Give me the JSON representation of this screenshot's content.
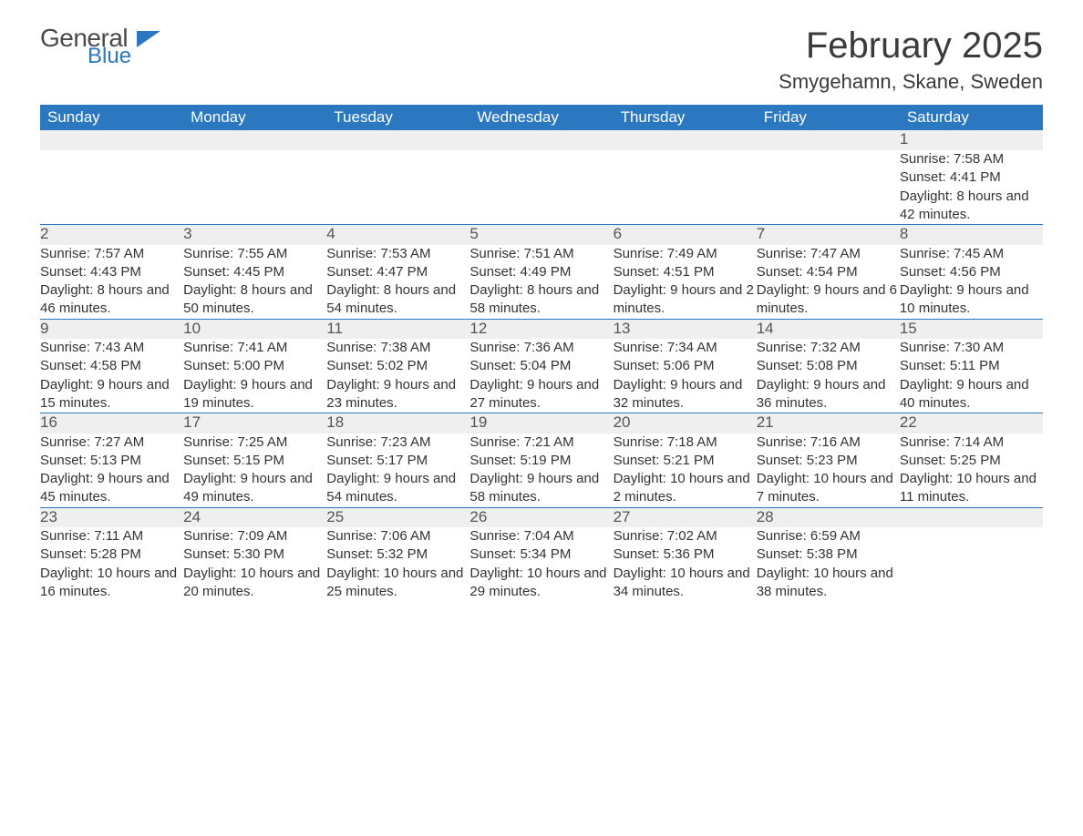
{
  "brand": {
    "general": "General",
    "blue": "Blue"
  },
  "title": "February 2025",
  "location": "Smygehamn, Skane, Sweden",
  "colors": {
    "header_bg": "#2b77c0",
    "header_fg": "#ffffff",
    "daynum_bg": "#efefef",
    "text": "#333333",
    "rule": "#2b77c0"
  },
  "typography": {
    "title_fontsize": 40,
    "location_fontsize": 22,
    "header_fontsize": 17,
    "daynum_fontsize": 17,
    "body_fontsize": 15
  },
  "layout": {
    "columns": 7,
    "rows": 5
  },
  "day_headers": [
    "Sunday",
    "Monday",
    "Tuesday",
    "Wednesday",
    "Thursday",
    "Friday",
    "Saturday"
  ],
  "weeks": [
    [
      null,
      null,
      null,
      null,
      null,
      null,
      {
        "n": "1",
        "sunrise": "7:58 AM",
        "sunset": "4:41 PM",
        "daylight": "8 hours and 42 minutes."
      }
    ],
    [
      {
        "n": "2",
        "sunrise": "7:57 AM",
        "sunset": "4:43 PM",
        "daylight": "8 hours and 46 minutes."
      },
      {
        "n": "3",
        "sunrise": "7:55 AM",
        "sunset": "4:45 PM",
        "daylight": "8 hours and 50 minutes."
      },
      {
        "n": "4",
        "sunrise": "7:53 AM",
        "sunset": "4:47 PM",
        "daylight": "8 hours and 54 minutes."
      },
      {
        "n": "5",
        "sunrise": "7:51 AM",
        "sunset": "4:49 PM",
        "daylight": "8 hours and 58 minutes."
      },
      {
        "n": "6",
        "sunrise": "7:49 AM",
        "sunset": "4:51 PM",
        "daylight": "9 hours and 2 minutes."
      },
      {
        "n": "7",
        "sunrise": "7:47 AM",
        "sunset": "4:54 PM",
        "daylight": "9 hours and 6 minutes."
      },
      {
        "n": "8",
        "sunrise": "7:45 AM",
        "sunset": "4:56 PM",
        "daylight": "9 hours and 10 minutes."
      }
    ],
    [
      {
        "n": "9",
        "sunrise": "7:43 AM",
        "sunset": "4:58 PM",
        "daylight": "9 hours and 15 minutes."
      },
      {
        "n": "10",
        "sunrise": "7:41 AM",
        "sunset": "5:00 PM",
        "daylight": "9 hours and 19 minutes."
      },
      {
        "n": "11",
        "sunrise": "7:38 AM",
        "sunset": "5:02 PM",
        "daylight": "9 hours and 23 minutes."
      },
      {
        "n": "12",
        "sunrise": "7:36 AM",
        "sunset": "5:04 PM",
        "daylight": "9 hours and 27 minutes."
      },
      {
        "n": "13",
        "sunrise": "7:34 AM",
        "sunset": "5:06 PM",
        "daylight": "9 hours and 32 minutes."
      },
      {
        "n": "14",
        "sunrise": "7:32 AM",
        "sunset": "5:08 PM",
        "daylight": "9 hours and 36 minutes."
      },
      {
        "n": "15",
        "sunrise": "7:30 AM",
        "sunset": "5:11 PM",
        "daylight": "9 hours and 40 minutes."
      }
    ],
    [
      {
        "n": "16",
        "sunrise": "7:27 AM",
        "sunset": "5:13 PM",
        "daylight": "9 hours and 45 minutes."
      },
      {
        "n": "17",
        "sunrise": "7:25 AM",
        "sunset": "5:15 PM",
        "daylight": "9 hours and 49 minutes."
      },
      {
        "n": "18",
        "sunrise": "7:23 AM",
        "sunset": "5:17 PM",
        "daylight": "9 hours and 54 minutes."
      },
      {
        "n": "19",
        "sunrise": "7:21 AM",
        "sunset": "5:19 PM",
        "daylight": "9 hours and 58 minutes."
      },
      {
        "n": "20",
        "sunrise": "7:18 AM",
        "sunset": "5:21 PM",
        "daylight": "10 hours and 2 minutes."
      },
      {
        "n": "21",
        "sunrise": "7:16 AM",
        "sunset": "5:23 PM",
        "daylight": "10 hours and 7 minutes."
      },
      {
        "n": "22",
        "sunrise": "7:14 AM",
        "sunset": "5:25 PM",
        "daylight": "10 hours and 11 minutes."
      }
    ],
    [
      {
        "n": "23",
        "sunrise": "7:11 AM",
        "sunset": "5:28 PM",
        "daylight": "10 hours and 16 minutes."
      },
      {
        "n": "24",
        "sunrise": "7:09 AM",
        "sunset": "5:30 PM",
        "daylight": "10 hours and 20 minutes."
      },
      {
        "n": "25",
        "sunrise": "7:06 AM",
        "sunset": "5:32 PM",
        "daylight": "10 hours and 25 minutes."
      },
      {
        "n": "26",
        "sunrise": "7:04 AM",
        "sunset": "5:34 PM",
        "daylight": "10 hours and 29 minutes."
      },
      {
        "n": "27",
        "sunrise": "7:02 AM",
        "sunset": "5:36 PM",
        "daylight": "10 hours and 34 minutes."
      },
      {
        "n": "28",
        "sunrise": "6:59 AM",
        "sunset": "5:38 PM",
        "daylight": "10 hours and 38 minutes."
      },
      null
    ]
  ],
  "labels": {
    "sunrise": "Sunrise:",
    "sunset": "Sunset:",
    "daylight": "Daylight:"
  }
}
